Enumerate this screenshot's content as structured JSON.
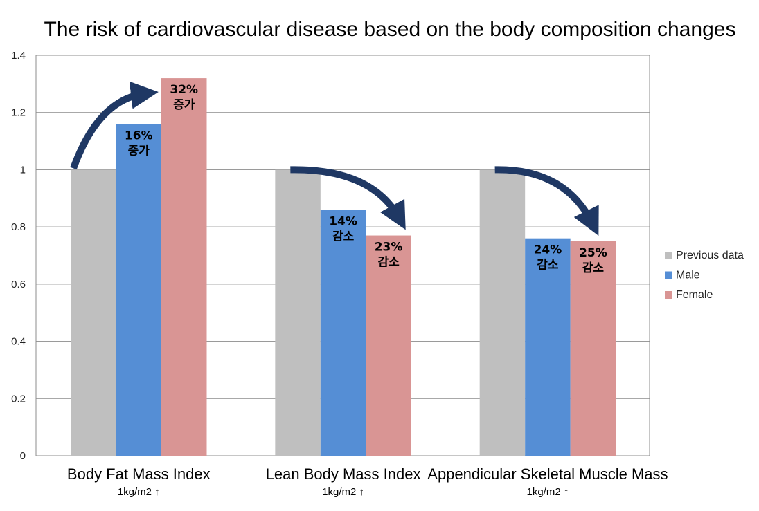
{
  "chart_data": {
    "type": "bar",
    "title": "The risk of cardiovascular disease based on the body composition changes",
    "categories": [
      "Body Fat Mass Index",
      "Lean Body Mass Index",
      "Appendicular Skeletal Muscle Mass"
    ],
    "category_sublabels": [
      "1kg/m2 ↑",
      "1kg/m2 ↑",
      "1kg/m2 ↑"
    ],
    "series": [
      {
        "name": "Previous data",
        "values": [
          1.0,
          1.0,
          1.0
        ],
        "color": "#bfbfbf"
      },
      {
        "name": "Male",
        "values": [
          1.16,
          0.86,
          0.76
        ],
        "color": "#558ed5"
      },
      {
        "name": "Female",
        "values": [
          1.32,
          0.77,
          0.75
        ],
        "color": "#d99594"
      }
    ],
    "data_labels": {
      "Male": [
        [
          "16%",
          "증가"
        ],
        [
          "14%",
          "감소"
        ],
        [
          "24%",
          "감소"
        ]
      ],
      "Female": [
        [
          "32%",
          "증가"
        ],
        [
          "23%",
          "감소"
        ],
        [
          "25%",
          "감소"
        ]
      ]
    },
    "ylim": [
      0,
      1.4
    ],
    "yticks": [
      "0",
      "0.2",
      "0.4",
      "0.6",
      "0.8",
      "1",
      "1.2",
      "1.4"
    ],
    "grid": true,
    "legend": "right",
    "arrow_color": "#1f3864"
  }
}
